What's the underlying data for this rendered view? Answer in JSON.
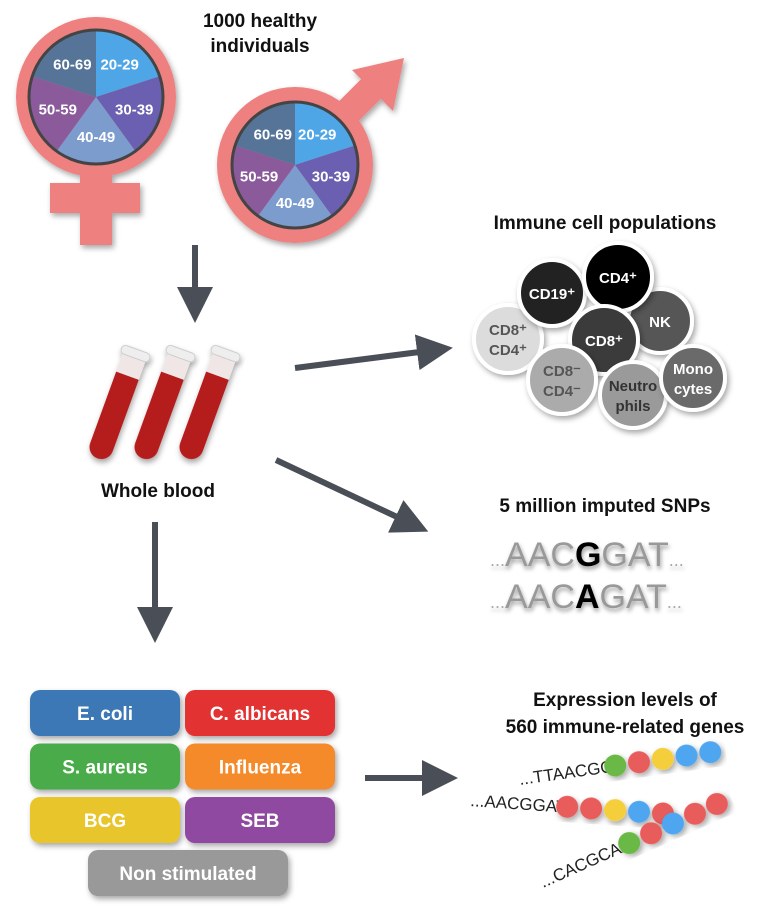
{
  "title": "1000 healthy individuals",
  "title_lines": [
    "1000 healthy",
    "individuals"
  ],
  "age_groups": [
    {
      "label": "20-29",
      "color": "#4fa6e6"
    },
    {
      "label": "30-39",
      "color": "#6a5fb0"
    },
    {
      "label": "40-49",
      "color": "#7b9ccd"
    },
    {
      "label": "50-59",
      "color": "#8a5a9a"
    },
    {
      "label": "60-69",
      "color": "#557498"
    }
  ],
  "symbol_color": "#ee8080",
  "arrow_color": "#4a4f57",
  "whole_blood": "Whole blood",
  "immune_title": "Immune cell populations",
  "cells": [
    {
      "id": "cd8cd4",
      "lines": [
        "CD8⁺",
        "CD4⁺"
      ],
      "fill": "#dcdcdc",
      "text": "#555"
    },
    {
      "id": "cd19",
      "lines": [
        "CD19⁺"
      ],
      "fill": "#222222",
      "text": "#fff"
    },
    {
      "id": "nk",
      "lines": [
        "NK"
      ],
      "fill": "#575757",
      "text": "#fff"
    },
    {
      "id": "cd4",
      "lines": [
        "CD4⁺"
      ],
      "fill": "#000000",
      "text": "#fff"
    },
    {
      "id": "cd8",
      "lines": [
        "CD8⁺"
      ],
      "fill": "#3a3a3a",
      "text": "#fff"
    },
    {
      "id": "cd8neg",
      "lines": [
        "CD8⁻",
        "CD4⁻"
      ],
      "fill": "#ababab",
      "text": "#555"
    },
    {
      "id": "neutro",
      "lines": [
        "Neutro",
        "phils"
      ],
      "fill": "#9a9a9a",
      "text": "#333"
    },
    {
      "id": "mono",
      "lines": [
        "Mono",
        "cytes"
      ],
      "fill": "#6a6a6a",
      "text": "#fff"
    }
  ],
  "snp_title": "5 million imputed SNPs",
  "snp_rows": [
    {
      "prefix": "...",
      "before": "AAC",
      "variant": "G",
      "after": "GAT",
      "suffix": "..."
    },
    {
      "prefix": "...",
      "before": "AAC",
      "variant": "A",
      "after": "GAT",
      "suffix": "..."
    }
  ],
  "stimuli": [
    {
      "label": "E. coli",
      "color": "#3a78b5"
    },
    {
      "label": "C. albicans",
      "color": "#e23030"
    },
    {
      "label": "S. aureus",
      "color": "#4aab4a"
    },
    {
      "label": "Influenza",
      "color": "#f58a2a"
    },
    {
      "label": "BCG",
      "color": "#e8c52a"
    },
    {
      "label": "SEB",
      "color": "#9048a0"
    },
    {
      "label": "Non stimulated",
      "color": "#999999"
    }
  ],
  "expr_title_lines": [
    "Expression levels of",
    "560 immune-related genes"
  ],
  "genes": [
    {
      "seq": "...TTAACGG",
      "beads": [
        "#6ab845",
        "#e85c5c",
        "#f5cf3a",
        "#4fa6f0",
        "#4fa6f0"
      ]
    },
    {
      "seq": "...AACGGAT",
      "beads": [
        "#e85c5c",
        "#e85c5c",
        "#f5cf3a",
        "#4fa6f0",
        "#e85c5c"
      ]
    },
    {
      "seq": "...CACGCAA",
      "beads": [
        "#6ab845",
        "#e85c5c",
        "#4fa6f0",
        "#e85c5c",
        "#e85c5c"
      ]
    }
  ]
}
